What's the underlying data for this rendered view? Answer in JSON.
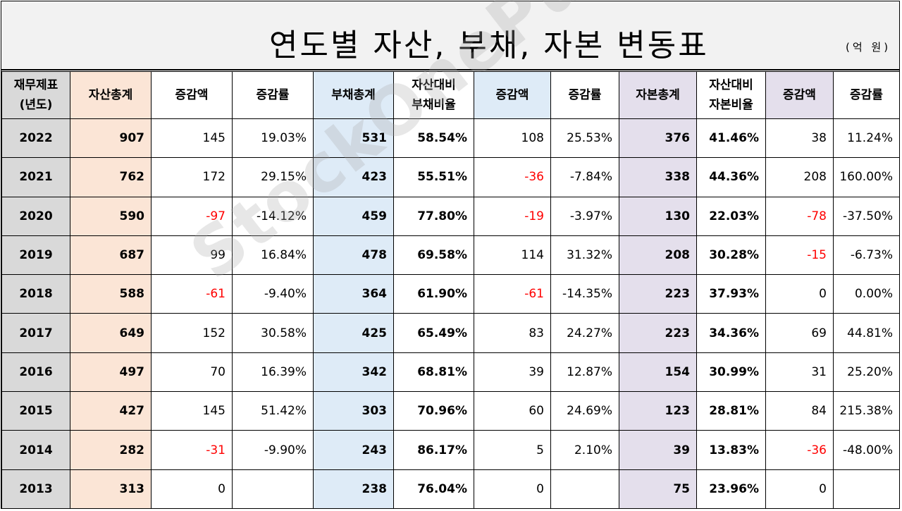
{
  "title": "연도별 자산, 부채, 자본 변동표",
  "unit": "(억 원)",
  "watermark": "StockOnePunch",
  "headers": [
    {
      "l1": "재무제표",
      "l2": "(년도)"
    },
    {
      "l1": "자산총계",
      "l2": ""
    },
    {
      "l1": "증감액",
      "l2": ""
    },
    {
      "l1": "증감률",
      "l2": ""
    },
    {
      "l1": "부채총계",
      "l2": ""
    },
    {
      "l1": "자산대비",
      "l2": "부채비율"
    },
    {
      "l1": "증감액",
      "l2": ""
    },
    {
      "l1": "증감률",
      "l2": ""
    },
    {
      "l1": "자본총계",
      "l2": ""
    },
    {
      "l1": "자산대비",
      "l2": "자본비율"
    },
    {
      "l1": "증감액",
      "l2": ""
    },
    {
      "l1": "증감률",
      "l2": ""
    }
  ],
  "rows": [
    [
      "2022",
      "907",
      "145",
      "19.03%",
      "531",
      "58.54%",
      "108",
      "25.53%",
      "376",
      "41.46%",
      "38",
      "11.24%"
    ],
    [
      "2021",
      "762",
      "172",
      "29.15%",
      "423",
      "55.51%",
      "-36",
      "-7.84%",
      "338",
      "44.36%",
      "208",
      "160.00%"
    ],
    [
      "2020",
      "590",
      "-97",
      "-14.12%",
      "459",
      "77.80%",
      "-19",
      "-3.97%",
      "130",
      "22.03%",
      "-78",
      "-37.50%"
    ],
    [
      "2019",
      "687",
      "99",
      "16.84%",
      "478",
      "69.58%",
      "114",
      "31.32%",
      "208",
      "30.28%",
      "-15",
      "-6.73%"
    ],
    [
      "2018",
      "588",
      "-61",
      "-9.40%",
      "364",
      "61.90%",
      "-61",
      "-14.35%",
      "223",
      "37.93%",
      "0",
      "0.00%"
    ],
    [
      "2017",
      "649",
      "152",
      "30.58%",
      "425",
      "65.49%",
      "83",
      "24.27%",
      "223",
      "34.36%",
      "69",
      "44.81%"
    ],
    [
      "2016",
      "497",
      "70",
      "16.39%",
      "342",
      "68.81%",
      "39",
      "12.87%",
      "154",
      "30.99%",
      "31",
      "25.20%"
    ],
    [
      "2015",
      "427",
      "145",
      "51.42%",
      "303",
      "70.96%",
      "60",
      "24.69%",
      "123",
      "28.81%",
      "84",
      "215.38%"
    ],
    [
      "2014",
      "282",
      "-31",
      "-9.90%",
      "243",
      "86.17%",
      "5",
      "2.10%",
      "39",
      "13.83%",
      "-36",
      "-48.00%"
    ],
    [
      "2013",
      "313",
      "0",
      "",
      "238",
      "76.04%",
      "0",
      "",
      "75",
      "23.96%",
      "0",
      ""
    ]
  ],
  "colors": {
    "year": "#d9d9d9",
    "assets": "#fbe5d6",
    "liabilities": "#deebf7",
    "equity": "#e4dfec",
    "negative_change": "#ff0000"
  }
}
